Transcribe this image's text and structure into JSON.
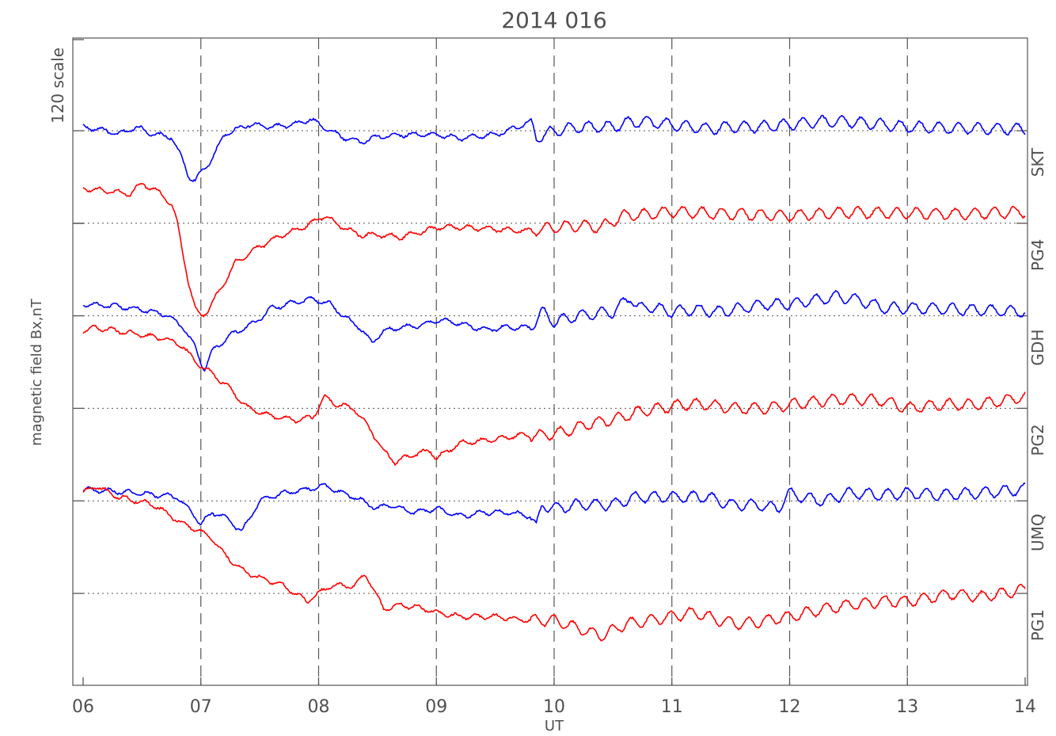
{
  "chart_data": {
    "type": "line",
    "title": "2014 016",
    "xlabel": "UT",
    "ylabel": "magnetic field Bx,nT",
    "scale_label": "120 scale",
    "scale_value": "120",
    "xlim": [
      6,
      14
    ],
    "x_tick_labels": [
      "06",
      "07",
      "08",
      "09",
      "10",
      "11",
      "12",
      "13",
      "14"
    ],
    "grid": "dashed vertical lines at each hour; dotted baseline per station",
    "stations": [
      {
        "name": "SKT",
        "color": "#0000ff",
        "x": [
          6.0,
          6.2,
          6.3,
          6.45,
          6.6,
          6.75,
          6.85,
          6.9,
          6.95,
          7.0,
          7.1,
          7.2,
          7.4,
          7.6,
          7.8,
          7.93,
          8.1,
          8.2,
          8.3,
          8.35,
          8.5,
          8.7,
          8.9,
          9.0,
          9.2,
          9.5,
          9.7,
          9.8,
          9.85,
          10.0,
          10.2,
          10.5,
          10.6,
          10.75,
          11.0,
          11.3,
          11.5,
          11.75,
          12.0,
          12.3,
          12.5,
          13.0,
          13.5,
          14.0
        ],
        "y": [
          5,
          0,
          -5,
          5,
          -5,
          -8,
          -40,
          -60,
          -65,
          -55,
          -35,
          -5,
          8,
          5,
          8,
          15,
          0,
          -8,
          -12,
          -15,
          -8,
          -5,
          -5,
          -5,
          -10,
          -5,
          5,
          12,
          -10,
          0,
          5,
          5,
          10,
          12,
          8,
          2,
          5,
          5,
          8,
          12,
          12,
          5,
          3,
          2
        ]
      },
      {
        "name": "PG4",
        "color": "#ff0000",
        "x": [
          6.0,
          6.2,
          6.4,
          6.5,
          6.65,
          6.75,
          6.8,
          6.85,
          6.9,
          6.95,
          7.0,
          7.05,
          7.15,
          7.3,
          7.5,
          7.7,
          7.9,
          8.05,
          8.2,
          8.35,
          8.5,
          8.7,
          8.9,
          9.0,
          9.2,
          9.5,
          9.8,
          10.0,
          10.2,
          10.4,
          10.6,
          10.8,
          11.0,
          11.5,
          12.0,
          12.5,
          13.0,
          13.5,
          14.0
        ],
        "y": [
          45,
          42,
          38,
          52,
          40,
          25,
          0,
          -40,
          -80,
          -110,
          -120,
          -115,
          -90,
          -50,
          -30,
          -15,
          -3,
          10,
          -5,
          -15,
          -15,
          -18,
          -10,
          -5,
          -5,
          -8,
          -10,
          -5,
          -3,
          -5,
          10,
          12,
          15,
          12,
          10,
          14,
          13,
          12,
          15
        ]
      },
      {
        "name": "GDH",
        "color": "#0000ff",
        "x": [
          6.0,
          6.3,
          6.5,
          6.7,
          6.85,
          6.95,
          7.0,
          7.03,
          7.1,
          7.25,
          7.45,
          7.6,
          7.8,
          7.95,
          8.1,
          8.25,
          8.35,
          8.45,
          8.55,
          8.7,
          8.9,
          9.0,
          9.2,
          9.4,
          9.6,
          9.8,
          9.9,
          10.0,
          10.2,
          10.5,
          10.65,
          10.7,
          10.8,
          11.0,
          11.2,
          11.4,
          11.6,
          11.8,
          12.0,
          12.2,
          12.4,
          12.6,
          12.8,
          13.0,
          13.5,
          14.0
        ],
        "y": [
          15,
          12,
          8,
          2,
          -15,
          -40,
          -60,
          -70,
          -45,
          -25,
          -10,
          10,
          18,
          22,
          15,
          -5,
          -15,
          -35,
          -20,
          -15,
          -12,
          -5,
          -10,
          -18,
          -15,
          -15,
          5,
          -8,
          0,
          5,
          25,
          10,
          12,
          5,
          8,
          5,
          10,
          15,
          15,
          20,
          25,
          20,
          10,
          10,
          8,
          5
        ]
      },
      {
        "name": "PG2",
        "color": "#ff0000",
        "x": [
          6.0,
          6.1,
          6.3,
          6.5,
          6.7,
          6.85,
          6.95,
          7.0,
          7.1,
          7.25,
          7.4,
          7.6,
          7.8,
          7.95,
          8.05,
          8.15,
          8.3,
          8.45,
          8.55,
          8.65,
          8.8,
          8.95,
          9.0,
          9.2,
          9.5,
          9.7,
          9.9,
          10.1,
          10.3,
          10.5,
          10.7,
          10.9,
          11.1,
          11.3,
          11.5,
          11.8,
          12.0,
          12.3,
          12.5,
          12.8,
          13.0,
          13.3,
          13.6,
          14.0
        ],
        "y": [
          100,
          105,
          100,
          95,
          90,
          80,
          60,
          55,
          45,
          25,
          0,
          -10,
          -15,
          -12,
          15,
          5,
          0,
          -30,
          -55,
          -70,
          -60,
          -55,
          -65,
          -45,
          -40,
          -35,
          -35,
          -30,
          -20,
          -15,
          -5,
          0,
          5,
          5,
          0,
          0,
          5,
          10,
          12,
          10,
          0,
          5,
          5,
          15
        ]
      },
      {
        "name": "UMQ",
        "color": "#0000ff",
        "x": [
          6.0,
          6.3,
          6.6,
          6.8,
          6.95,
          7.0,
          7.1,
          7.2,
          7.35,
          7.5,
          7.7,
          7.9,
          8.05,
          8.2,
          8.3,
          8.5,
          8.6,
          8.8,
          9.0,
          9.2,
          9.4,
          9.6,
          9.8,
          9.85,
          9.9,
          10.0,
          10.2,
          10.5,
          10.7,
          10.9,
          11.1,
          11.3,
          11.5,
          11.7,
          11.9,
          12.0,
          12.1,
          12.3,
          12.5,
          12.8,
          13.0,
          13.3,
          13.6,
          14.0
        ],
        "y": [
          15,
          12,
          8,
          5,
          -20,
          -30,
          -15,
          -20,
          -40,
          0,
          10,
          15,
          20,
          10,
          5,
          -10,
          -5,
          -15,
          -10,
          -20,
          -15,
          -15,
          -20,
          -35,
          -5,
          -10,
          -5,
          -5,
          5,
          5,
          5,
          5,
          -5,
          -5,
          -10,
          10,
          5,
          0,
          10,
          8,
          10,
          8,
          10,
          15
        ]
      },
      {
        "name": "PG1",
        "color": "#ff0000",
        "x": [
          6.0,
          6.1,
          6.3,
          6.6,
          6.85,
          7.0,
          7.1,
          7.2,
          7.35,
          7.5,
          7.7,
          7.9,
          8.1,
          8.3,
          8.4,
          8.55,
          8.7,
          8.9,
          9.0,
          9.2,
          9.5,
          9.8,
          10.0,
          10.2,
          10.4,
          10.6,
          10.8,
          11.0,
          11.2,
          11.4,
          11.6,
          11.8,
          12.0,
          12.3,
          12.5,
          12.8,
          13.0,
          13.2,
          13.4,
          13.6,
          13.8,
          14.0
        ],
        "y": [
          130,
          140,
          125,
          115,
          90,
          80,
          70,
          50,
          30,
          20,
          10,
          -10,
          10,
          10,
          25,
          -20,
          -15,
          -20,
          -25,
          -30,
          -30,
          -35,
          -35,
          -45,
          -55,
          -40,
          -35,
          -30,
          -25,
          -35,
          -40,
          -35,
          -30,
          -20,
          -15,
          -10,
          -10,
          -5,
          0,
          -5,
          0,
          5
        ]
      }
    ]
  }
}
